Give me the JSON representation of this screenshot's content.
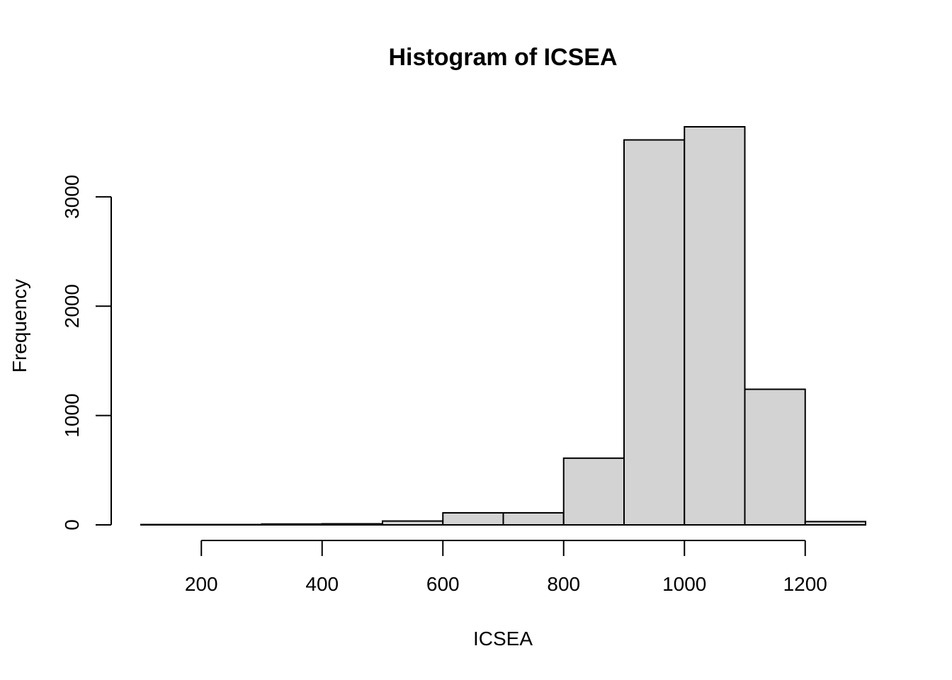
{
  "chart_data": {
    "type": "bar",
    "title": "Histogram of ICSEA",
    "xlabel": "ICSEA",
    "ylabel": "Frequency",
    "bins": [
      {
        "from": 100,
        "to": 200,
        "count": 1
      },
      {
        "from": 200,
        "to": 300,
        "count": 2
      },
      {
        "from": 300,
        "to": 400,
        "count": 8
      },
      {
        "from": 400,
        "to": 500,
        "count": 10
      },
      {
        "from": 500,
        "to": 600,
        "count": 35
      },
      {
        "from": 600,
        "to": 700,
        "count": 110
      },
      {
        "from": 700,
        "to": 800,
        "count": 110
      },
      {
        "from": 800,
        "to": 900,
        "count": 610
      },
      {
        "from": 900,
        "to": 1000,
        "count": 3520
      },
      {
        "from": 1000,
        "to": 1100,
        "count": 3640
      },
      {
        "from": 1100,
        "to": 1200,
        "count": 1240
      },
      {
        "from": 1200,
        "to": 1300,
        "count": 30
      }
    ],
    "xlim": [
      100,
      1300
    ],
    "ylim": [
      0,
      3640
    ],
    "x_ticks": [
      200,
      400,
      600,
      800,
      1000,
      1200
    ],
    "y_ticks": [
      0,
      1000,
      2000,
      3000
    ],
    "grid": false,
    "bar_color": "#d3d3d3",
    "edge_color": "#000000"
  }
}
